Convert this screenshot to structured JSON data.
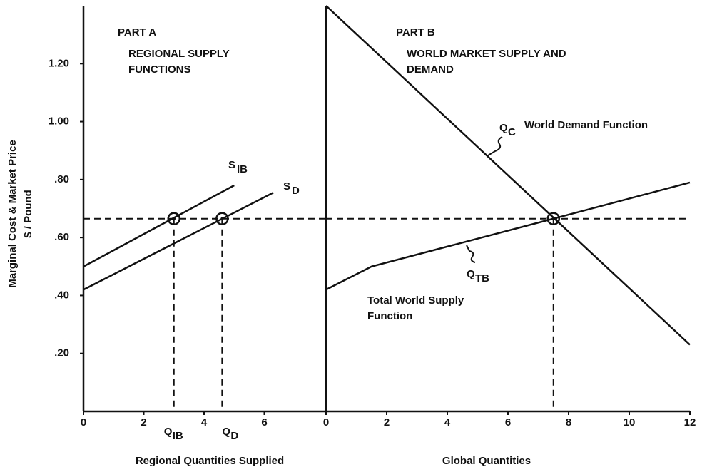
{
  "y_axis_label": [
    "Marginal Cost & Market Price",
    "$ / Pound"
  ],
  "market_price": 0.665,
  "chart_data": [
    {
      "type": "line",
      "title": "PART A",
      "subtitle": [
        "REGIONAL SUPPLY",
        "FUNCTIONS"
      ],
      "x_label": "Regional Quantities Supplied",
      "xlim": [
        0,
        8
      ],
      "xticks": [
        0,
        2,
        4,
        6
      ],
      "ylim": [
        0,
        1.4
      ],
      "yticks": [
        {
          "value": 0.2,
          "label": ".20"
        },
        {
          "value": 0.4,
          "label": ".40"
        },
        {
          "value": 0.6,
          "label": ".60"
        },
        {
          "value": 0.8,
          "label": ".80"
        },
        {
          "value": 1.0,
          "label": "1.00"
        },
        {
          "value": 1.2,
          "label": "1.20"
        }
      ],
      "series": [
        {
          "name": "S",
          "name_sub": "IB",
          "color": "#111111",
          "x": [
            0,
            5.0
          ],
          "values": [
            0.5,
            0.78
          ]
        },
        {
          "name": "S",
          "name_sub": "D",
          "color": "#111111",
          "x": [
            0,
            6.3
          ],
          "values": [
            0.42,
            0.755
          ]
        }
      ],
      "quantities": [
        {
          "x": 3.0,
          "label": "Q",
          "sub": "IB"
        },
        {
          "x": 4.6,
          "label": "Q",
          "sub": "D"
        }
      ]
    },
    {
      "type": "line",
      "title": "PART B",
      "subtitle": [
        "WORLD MARKET SUPPLY AND",
        "DEMAND"
      ],
      "x_label": "Global Quantities",
      "xlim": [
        0,
        12
      ],
      "xticks": [
        0,
        2,
        4,
        6,
        8,
        10,
        12
      ],
      "ylim": [
        0,
        1.4
      ],
      "series": [
        {
          "name": "Q",
          "name_sub": "C",
          "description": [
            "World Demand Function"
          ],
          "color": "#111111",
          "x": [
            0,
            12
          ],
          "values": [
            1.4,
            0.23
          ]
        },
        {
          "name": "Q",
          "name_sub": "TB",
          "description": [
            "Total World Supply",
            "Function"
          ],
          "color": "#111111",
          "x": [
            0,
            1.5,
            7.5,
            12
          ],
          "values": [
            0.42,
            0.5,
            0.665,
            0.79
          ]
        }
      ],
      "quantities": [
        {
          "x": 7.5
        }
      ]
    }
  ]
}
